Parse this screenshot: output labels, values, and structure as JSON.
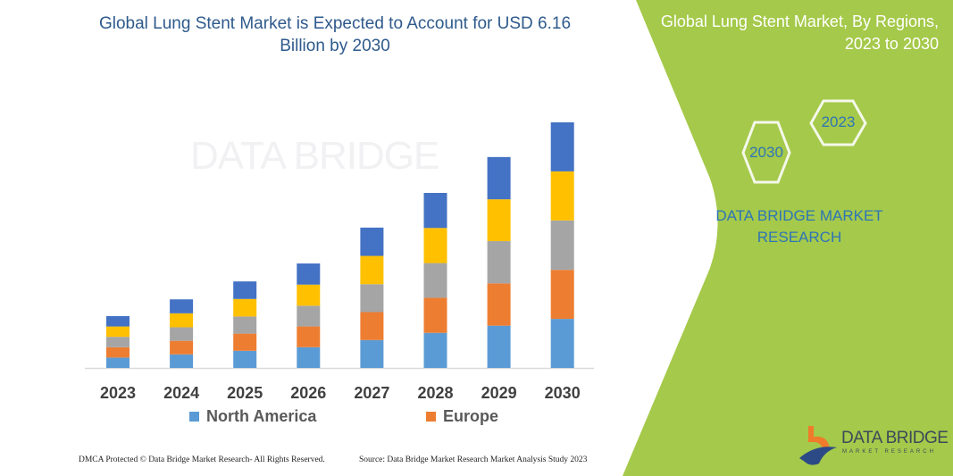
{
  "title": "Global Lung Stent Market is Expected to Account for USD 6.16 Billion by 2030",
  "watermark": "DATA BRIDGE",
  "chart_data": {
    "type": "bar",
    "stacked": true,
    "categories": [
      "2023",
      "2024",
      "2025",
      "2026",
      "2027",
      "2028",
      "2029",
      "2030"
    ],
    "series": [
      {
        "name": "North America",
        "color": "#5B9BD5",
        "values": [
          0.26,
          0.34,
          0.43,
          0.52,
          0.7,
          0.88,
          1.06,
          1.23
        ]
      },
      {
        "name": "Europe",
        "color": "#ED7D31",
        "values": [
          0.26,
          0.34,
          0.43,
          0.52,
          0.7,
          0.88,
          1.06,
          1.23
        ]
      },
      {
        "color": "#A5A5A5",
        "values": [
          0.26,
          0.34,
          0.43,
          0.52,
          0.7,
          0.87,
          1.06,
          1.24
        ]
      },
      {
        "color": "#FFC000",
        "values": [
          0.26,
          0.35,
          0.44,
          0.53,
          0.71,
          0.88,
          1.05,
          1.23
        ]
      },
      {
        "color": "#4472C4",
        "values": [
          0.26,
          0.35,
          0.44,
          0.53,
          0.71,
          0.88,
          1.06,
          1.23
        ]
      }
    ],
    "ylim": [
      0,
      6.16
    ],
    "grid": false,
    "legend_position": "bottom",
    "xlabel": "",
    "ylabel": ""
  },
  "footer": {
    "copyright": "DMCA Protected © Data Bridge Market Research-  All Rights Reserved.",
    "source": "Source: Data Bridge Market Research  Market Analysis Study 2023"
  },
  "panel": {
    "title_line1": "Global Lung Stent Market, By Regions,",
    "title_line2": "2023 to 2030",
    "hex_start": "2023",
    "hex_end": "2030",
    "brand_line1": "DATA BRIDGE MARKET",
    "brand_line2": "RESEARCH",
    "logo_text": "DATA BRIDGE",
    "logo_sub": "MARKET RESEARCH",
    "color": "#A5C94A"
  }
}
